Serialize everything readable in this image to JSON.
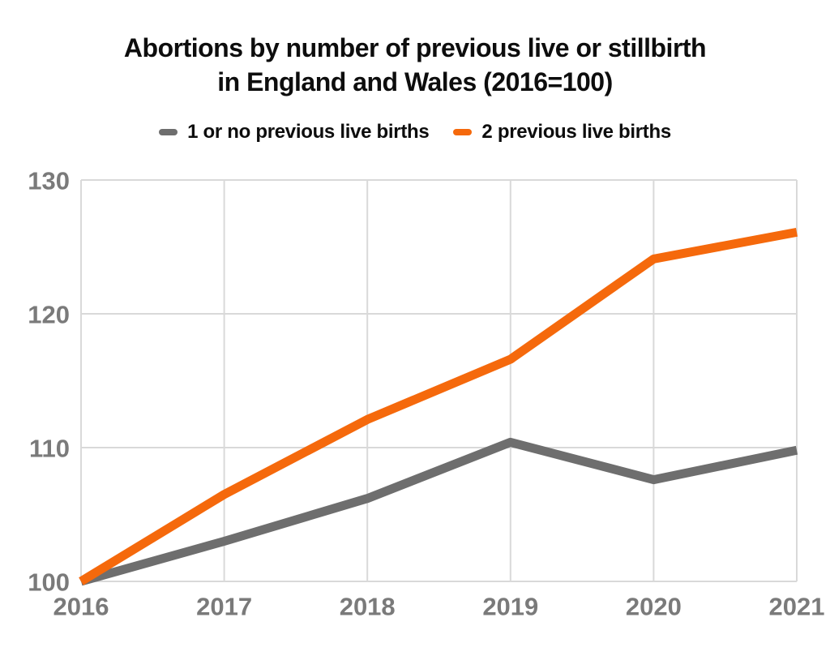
{
  "header": {
    "title_line1": "Abortions by number of previous live or stillbirth",
    "title_line2": "in England and Wales (2016=100)"
  },
  "chart_data": {
    "type": "line",
    "title": "Abortions by number of previous live or stillbirth in England and Wales (2016=100)",
    "x": [
      2016,
      2017,
      2018,
      2019,
      2020,
      2021
    ],
    "x_tick_labels": [
      "2016",
      "2017",
      "2018",
      "2019",
      "2020",
      "2021"
    ],
    "series": [
      {
        "name": "1 or no previous live births",
        "color": "#6E6E6E",
        "values": [
          100,
          103,
          106.2,
          110.4,
          107.6,
          109.8
        ]
      },
      {
        "name": "2 previous live births",
        "color": "#F5690C",
        "values": [
          100,
          106.5,
          112.1,
          116.6,
          124.1,
          126.1
        ]
      }
    ],
    "ylim": [
      100,
      130
    ],
    "y_ticks": [
      100,
      110,
      120,
      130
    ],
    "grid": true,
    "legend_position": "top-center",
    "colors": {
      "grid": "#D9D9D9",
      "axis_text": "#7A7A7A",
      "title_text": "#0D0D0D",
      "background": "#FFFFFF"
    }
  }
}
